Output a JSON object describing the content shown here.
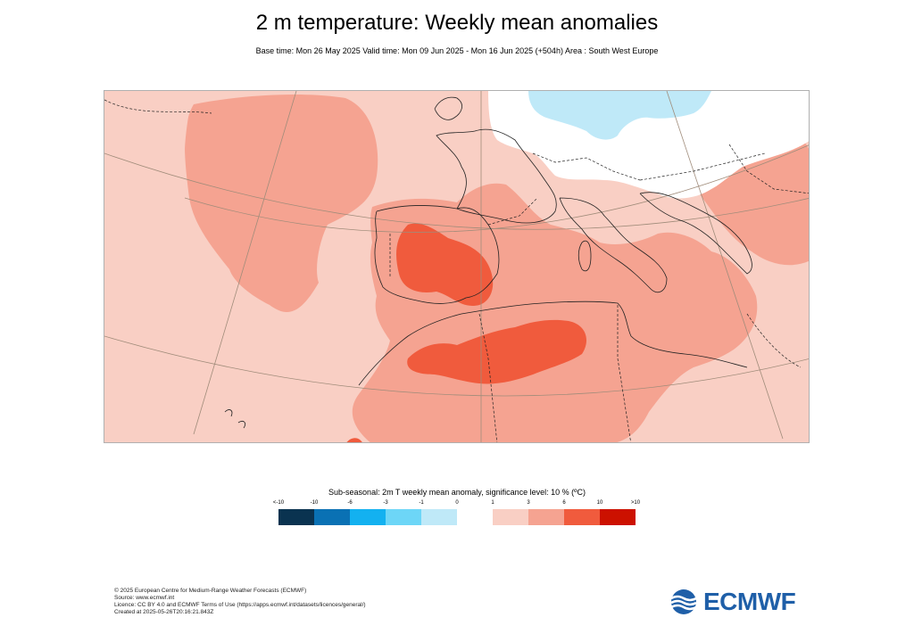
{
  "header": {
    "title": "2 m temperature: Weekly mean anomalies",
    "subtitle": "Base time: Mon 26 May 2025 Valid time: Mon 09 Jun 2025 - Mon 16 Jun 2025 (+504h) Area : South West Europe"
  },
  "map": {
    "region": "South West Europe",
    "palette": {
      "background_anomaly": "#f9cfc4",
      "warm_anomaly": "#f5a391",
      "hot_anomaly": "#f05b3d",
      "neutral": "#ffffff",
      "cool_anomaly": "#bfe9f8",
      "coastline": "#222222",
      "graticule": "#a08c7a"
    }
  },
  "legend": {
    "title": "Sub-seasonal: 2m T weekly mean anomaly, significance level: 10 % (ºC)",
    "labels": [
      "<-10",
      "-10",
      "-6",
      "-3",
      "-1",
      "0",
      "1",
      "3",
      "6",
      "10",
      ">10"
    ],
    "colors": [
      "#0a3350",
      "#0a71b4",
      "#13b1f0",
      "#6dd6f7",
      "#bfe9f8",
      "#ffffff",
      "#f9cfc4",
      "#f5a391",
      "#f05b3d",
      "#cc1100",
      "#6b0000"
    ]
  },
  "footer": {
    "copyright": "© 2025 European Centre for Medium-Range Weather Forecasts (ECMWF)",
    "source": "Source: www.ecmwf.int",
    "licence": "Licence: CC BY 4.0 and ECMWF Terms of Use (https://apps.ecmwf.int/datasets/licences/general/)",
    "created": "Created at 2025-05-26T20:16:21.843Z"
  },
  "logo": {
    "text": "ECMWF",
    "color": "#1f5fa8"
  }
}
